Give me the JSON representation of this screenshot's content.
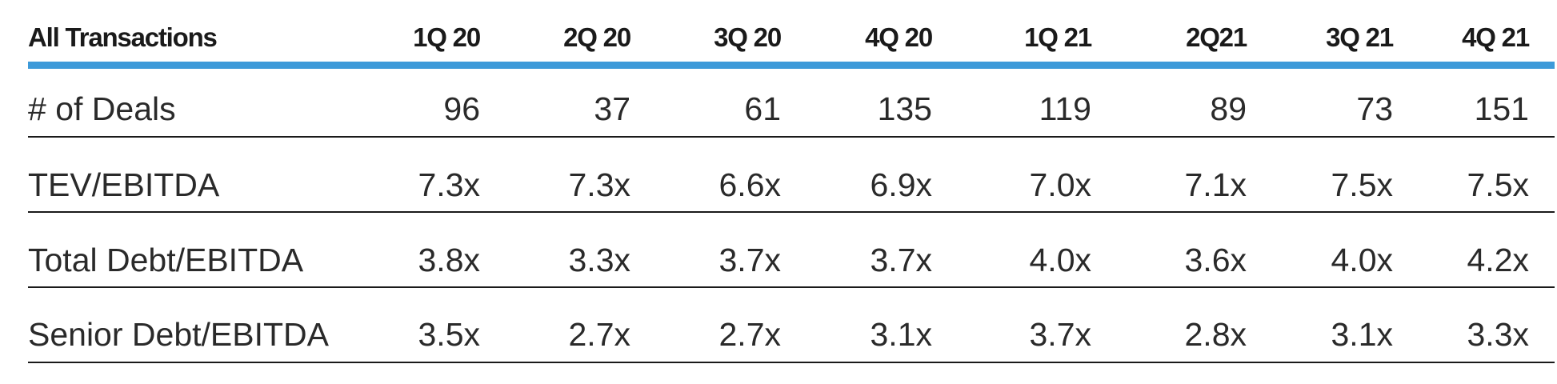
{
  "table": {
    "header": [
      "All Transactions",
      "1Q 20",
      "2Q 20",
      "3Q 20",
      "4Q 20",
      "1Q 21",
      "2Q21",
      "3Q 21",
      "4Q 21"
    ],
    "rows": [
      [
        "# of Deals",
        "96",
        "37",
        "61",
        "135",
        "119",
        "89",
        "73",
        "151"
      ],
      [
        "TEV/EBITDA",
        "7.3x",
        "7.3x",
        "6.6x",
        "6.9x",
        "7.0x",
        "7.1x",
        "7.5x",
        "7.5x"
      ],
      [
        "Total Debt/EBITDA",
        "3.8x",
        "3.3x",
        "3.7x",
        "3.7x",
        "4.0x",
        "3.6x",
        "4.0x",
        "4.2x"
      ],
      [
        "Senior Debt/EBITDA",
        "3.5x",
        "2.7x",
        "2.7x",
        "3.1x",
        "3.7x",
        "2.8x",
        "3.1x",
        "3.3x"
      ]
    ]
  }
}
